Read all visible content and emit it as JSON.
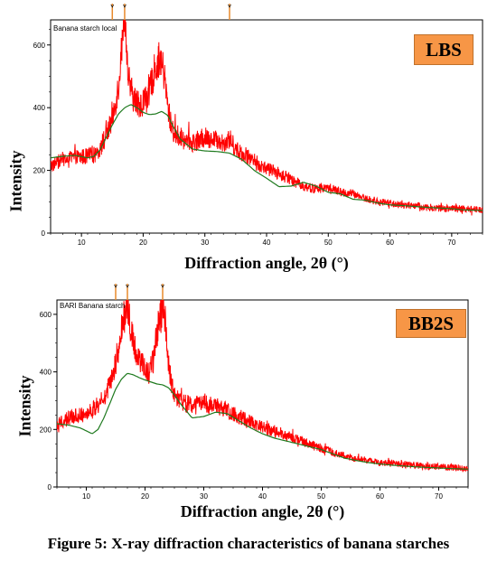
{
  "figure": {
    "caption": "Figure 5: X-ray diffraction characteristics of banana starches"
  },
  "colors": {
    "raw": "#ff0000",
    "fit": "#1f7a1f",
    "marker": "#e88a2c",
    "badge": "#f79646"
  },
  "chart_data": [
    {
      "type": "line",
      "badge": "LBS",
      "title": "Banana starch local",
      "xlabel": "Diffraction angle, 2θ (°)",
      "ylabel": "Intensity",
      "xlim": [
        5,
        75
      ],
      "ylim": [
        0,
        680
      ],
      "xticks": [
        10,
        20,
        30,
        40,
        50,
        60,
        70
      ],
      "yticks": [
        0,
        200,
        400,
        600
      ],
      "grid": false,
      "peak_markers": [
        15,
        17,
        34
      ],
      "series": [
        {
          "role": "raw",
          "x": [
            5,
            7,
            9,
            11,
            12,
            13,
            14,
            14.5,
            15,
            15.5,
            16,
            16.5,
            17,
            17.5,
            18,
            18.5,
            19,
            19.5,
            20,
            20.5,
            21,
            21.5,
            22,
            22.5,
            23,
            23.5,
            24,
            24.5,
            25,
            26,
            27,
            28,
            29,
            30,
            31,
            32,
            33,
            34,
            35,
            36,
            37,
            38,
            39,
            40,
            42,
            44,
            46,
            48,
            50,
            52,
            54,
            56,
            58,
            60,
            62,
            64,
            66,
            68,
            70,
            72,
            75
          ],
          "y": [
            215,
            235,
            240,
            245,
            250,
            270,
            310,
            335,
            365,
            415,
            470,
            590,
            665,
            520,
            455,
            430,
            415,
            405,
            420,
            430,
            445,
            490,
            530,
            550,
            545,
            490,
            400,
            350,
            320,
            305,
            295,
            290,
            295,
            305,
            300,
            295,
            290,
            300,
            270,
            255,
            245,
            230,
            215,
            205,
            190,
            170,
            150,
            140,
            145,
            130,
            125,
            110,
            100,
            95,
            90,
            88,
            82,
            80,
            78,
            76,
            75
          ]
        },
        {
          "role": "fit",
          "x": [
            5,
            7,
            9,
            11,
            12,
            13,
            14,
            15,
            16,
            17,
            18,
            19,
            20,
            21,
            22,
            23,
            24,
            25,
            26,
            28,
            30,
            32,
            34,
            36,
            38,
            40,
            42,
            44,
            46,
            48,
            50,
            52,
            54,
            56,
            58,
            60,
            62,
            64,
            66,
            68,
            70,
            72,
            75
          ],
          "y": [
            240,
            245,
            248,
            240,
            245,
            265,
            305,
            345,
            380,
            400,
            410,
            400,
            385,
            378,
            380,
            388,
            375,
            335,
            300,
            268,
            262,
            260,
            255,
            235,
            200,
            175,
            148,
            150,
            162,
            150,
            130,
            125,
            108,
            105,
            96,
            90,
            88,
            85,
            82,
            80,
            78,
            74,
            72
          ]
        }
      ]
    },
    {
      "type": "line",
      "badge": "BB2S",
      "title": "BARI Banana starch",
      "xlabel": "Diffraction angle, 2θ (°)",
      "ylabel": "Intensity",
      "xlim": [
        5,
        75
      ],
      "ylim": [
        0,
        650
      ],
      "xticks": [
        10,
        20,
        30,
        40,
        50,
        60,
        70
      ],
      "yticks": [
        0,
        200,
        400,
        600
      ],
      "grid": false,
      "peak_markers": [
        15,
        17,
        23
      ],
      "series": [
        {
          "role": "raw",
          "x": [
            5,
            7,
            9,
            11,
            12,
            13,
            14,
            14.5,
            15,
            15.5,
            16,
            16.5,
            17,
            17.5,
            18,
            18.5,
            19,
            19.5,
            20,
            20.5,
            21,
            21.5,
            22,
            22.5,
            23,
            23.5,
            24,
            24.5,
            25,
            26,
            27,
            28,
            29,
            30,
            31,
            32,
            33,
            34,
            35,
            36,
            38,
            40,
            42,
            44,
            46,
            48,
            50,
            52,
            54,
            56,
            58,
            60,
            62,
            64,
            66,
            68,
            70,
            72,
            75
          ],
          "y": [
            215,
            240,
            250,
            265,
            285,
            310,
            350,
            380,
            430,
            490,
            540,
            600,
            630,
            560,
            500,
            470,
            445,
            420,
            405,
            400,
            410,
            450,
            520,
            590,
            615,
            545,
            420,
            355,
            320,
            300,
            290,
            285,
            290,
            295,
            285,
            280,
            275,
            265,
            255,
            245,
            225,
            205,
            195,
            180,
            165,
            150,
            135,
            120,
            108,
            98,
            92,
            85,
            82,
            78,
            75,
            72,
            70,
            68,
            66
          ]
        },
        {
          "role": "fit",
          "x": [
            5,
            7,
            9,
            11,
            12,
            13,
            14,
            15,
            16,
            17,
            18,
            19,
            20,
            21,
            22,
            23,
            24,
            25,
            26,
            28,
            30,
            32,
            34,
            36,
            38,
            40,
            42,
            44,
            46,
            48,
            50,
            52,
            54,
            56,
            58,
            60,
            62,
            64,
            66,
            68,
            70,
            72,
            75
          ],
          "y": [
            220,
            215,
            205,
            185,
            200,
            240,
            290,
            340,
            375,
            395,
            390,
            380,
            372,
            365,
            358,
            355,
            345,
            320,
            290,
            240,
            245,
            260,
            255,
            230,
            205,
            185,
            170,
            160,
            150,
            140,
            130,
            115,
            100,
            92,
            85,
            80,
            76,
            73,
            70,
            68,
            66,
            64,
            62
          ]
        }
      ]
    }
  ]
}
